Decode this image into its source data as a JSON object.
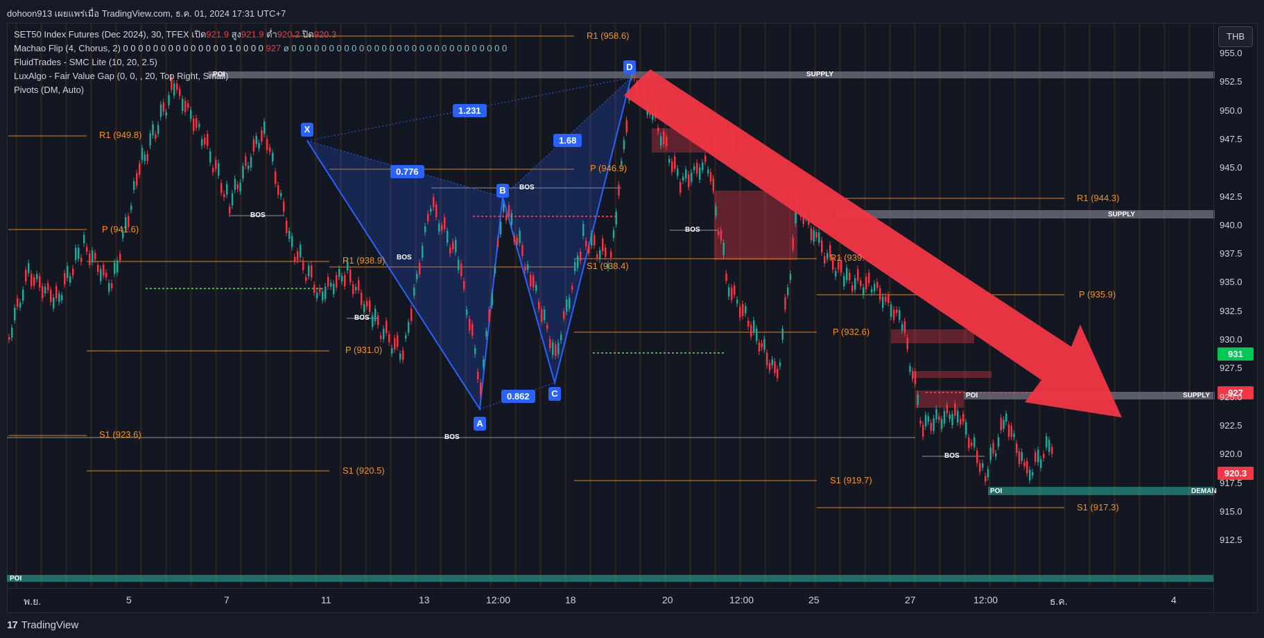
{
  "header": {
    "title": "dohoon913 เผยแพร่เมื่อ TradingView.com, ธ.ค. 01, 2024 17:31 UTC+7"
  },
  "legend": {
    "symbol": "SET50 Index Futures (Dec 2024), 30, TFEX",
    "open_label": "เปิด",
    "open": "921.9",
    "high_label": "สูง",
    "high": "921.9",
    "low_label": "ต่ำ",
    "low": "920.2",
    "close_label": "ปิด",
    "close": "920.3",
    "machao": "Machao Flip (4, Chorus, 2)",
    "machao_values": "0 0 0 0 0 0 0 0 0 0 0 0 0 0 1 0 0 0 0",
    "machao_value2": "927",
    "machao_tail": "ø 0 0 0 0 0 0 0 0 0 0 0 0 0 0 0 0 0 0 0 0 0 0 0 0 0 0 0 0 0",
    "fluid": "FluidTrades - SMC Lite  (10, 20, 2.5)",
    "luxalgo": "LuxAlgo - Fair Value Gap (0, 0, , 20, Top Right, Small)",
    "pivots": "Pivots (DM, Auto)"
  },
  "currency": "THB",
  "price_ticks": [
    "955.0",
    "952.5",
    "950.0",
    "947.5",
    "945.0",
    "942.5",
    "940.0",
    "937.5",
    "935.0",
    "932.5",
    "930.0",
    "927.5",
    "925.0",
    "922.5",
    "920.0",
    "917.5",
    "915.0",
    "912.5"
  ],
  "price_labels": {
    "green": "931",
    "red1": "927",
    "red2": "920.3"
  },
  "time_ticks": [
    "พ.ย.",
    "5",
    "7",
    "11",
    "13",
    "12:00",
    "18",
    "20",
    "12:00",
    "25",
    "27",
    "12:00",
    "ธ.ค.",
    "4"
  ],
  "pattern": {
    "X": "X",
    "A": "A",
    "B": "B",
    "C": "C",
    "D": "D",
    "r1": "1.231",
    "r2": "0.776",
    "r3": "1.68",
    "r4": "0.862"
  },
  "pivot_levels": [
    "R1 (958.6)",
    "R1 (949.8)",
    "P (941.6)",
    "R1 (938.9)",
    "P (931.0)",
    "S1 (923.6)",
    "S1 (920.5)",
    "P (946.9)",
    "S1 (938.4)",
    "S1 (919.7)",
    "R1 (944.3)",
    "R1 (939.",
    "P (935.9)",
    "P (932.6)",
    "S1 (917.3)"
  ],
  "zones": {
    "supply": "SUPPLY",
    "demand": "DEMAN",
    "poi": "POI",
    "bos": "BOS"
  },
  "footer": {
    "brand": "TradingView",
    "logo": "17"
  },
  "colors": {
    "bull": "#26a69a",
    "bear": "#f23645",
    "pattern": "#2962ff",
    "pivot": "#f7931a",
    "arrow": "#f23645"
  }
}
